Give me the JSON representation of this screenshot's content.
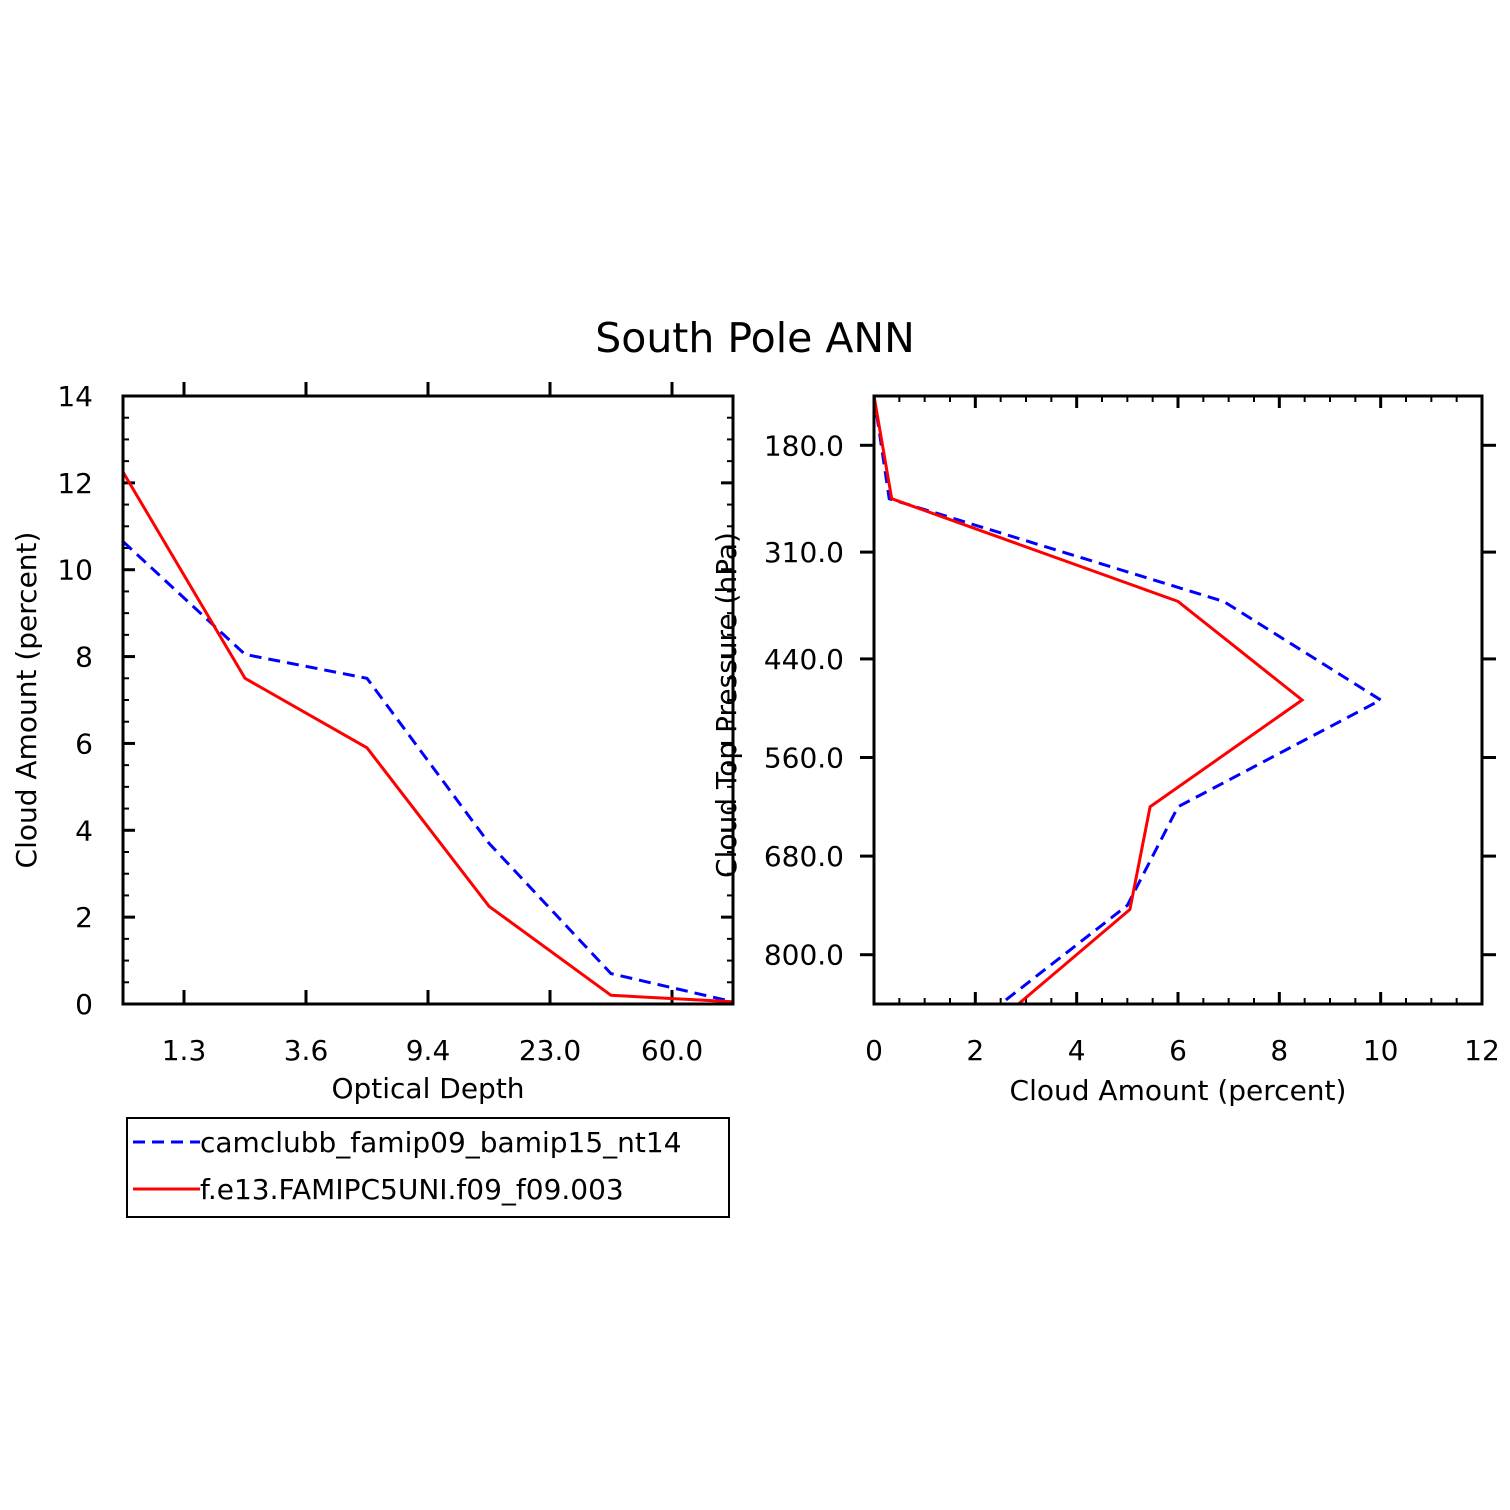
{
  "title": "South Pole ANN",
  "colors": {
    "series_blue": "#0000ff",
    "series_red": "#ff0000",
    "axis": "#000000",
    "background": "#ffffff"
  },
  "legend": {
    "entries": [
      {
        "label": "camclubb_famip09_bamip15_nt14",
        "style": "dashed",
        "color": "#0000ff"
      },
      {
        "label": "f.e13.FAMIPC5UNI.f09_f09.003",
        "style": "solid",
        "color": "#ff0000"
      }
    ]
  },
  "chart_data": [
    {
      "type": "line",
      "xlabel": "Optical Depth",
      "ylabel": "Cloud Amount (percent)",
      "xlim": [
        0,
        5
      ],
      "ylim": [
        0,
        14
      ],
      "x_tick_values": [
        0.5,
        1.5,
        2.5,
        3.5,
        4.5
      ],
      "x_tick_labels": [
        "1.3",
        "3.6",
        "9.4",
        "23.0",
        "60.0"
      ],
      "y_tick_values": [
        0,
        2,
        4,
        6,
        8,
        10,
        12,
        14
      ],
      "y_tick_labels": [
        "0",
        "2",
        "4",
        "6",
        "8",
        "10",
        "12",
        "14"
      ],
      "x": [
        0,
        1,
        2,
        3,
        4,
        5
      ],
      "series": [
        {
          "name": "camclubb_famip09_bamip15_nt14",
          "values": [
            10.65,
            8.05,
            7.5,
            3.7,
            0.7,
            0.05
          ]
        },
        {
          "name": "f.e13.FAMIPC5UNI.f09_f09.003",
          "values": [
            12.25,
            7.5,
            5.9,
            2.25,
            0.2,
            0.05
          ]
        }
      ]
    },
    {
      "type": "line",
      "xlabel": "Cloud Amount (percent)",
      "ylabel": "Cloud Top Pressure (hPa)",
      "xlim": [
        0,
        12
      ],
      "ylim": [
        120,
        860
      ],
      "y_inverted": true,
      "x_tick_values": [
        0,
        2,
        4,
        6,
        8,
        10,
        12
      ],
      "x_tick_labels": [
        "0",
        "2",
        "4",
        "6",
        "8",
        "10",
        "12"
      ],
      "y_tick_values": [
        180,
        310,
        440,
        560,
        680,
        800
      ],
      "y_tick_labels": [
        "180.0",
        "310.0",
        "440.0",
        "560.0",
        "680.0",
        "800.0"
      ],
      "series": [
        {
          "name": "camclubb_famip09_bamip15_nt14",
          "pressure": [
            120,
            245,
            370,
            490,
            620,
            740,
            860
          ],
          "values": [
            0.0,
            0.3,
            6.9,
            10.0,
            6.0,
            5.0,
            2.5
          ]
        },
        {
          "name": "f.e13.FAMIPC5UNI.f09_f09.003",
          "pressure": [
            120,
            245,
            370,
            490,
            620,
            745,
            860
          ],
          "values": [
            0.0,
            0.35,
            6.0,
            8.45,
            5.45,
            5.05,
            2.85
          ]
        }
      ]
    }
  ]
}
